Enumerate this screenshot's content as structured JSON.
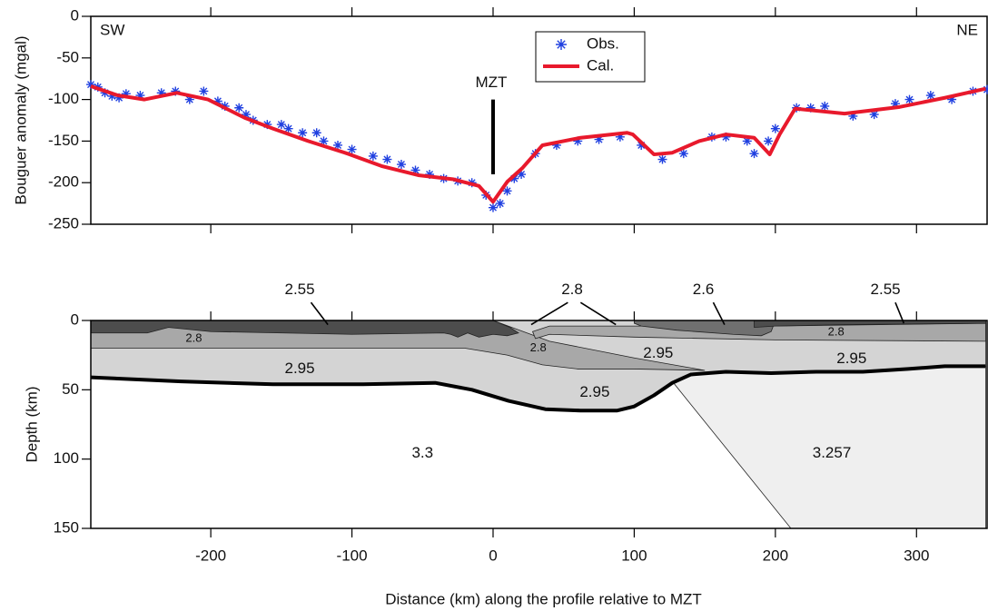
{
  "chart_data": [
    {
      "type": "line",
      "xlim": [
        -285,
        350
      ],
      "xticks": [
        -200,
        -100,
        0,
        100,
        200,
        300
      ],
      "ylim": [
        -250,
        0
      ],
      "yticks": [
        0,
        -50,
        -100,
        -150,
        -200,
        -250
      ],
      "y_label": "Bouguer anomaly (mgal)",
      "annotations": {
        "left": "SW",
        "right": "NE",
        "marker": "MZT"
      },
      "legend": "top",
      "series": [
        {
          "name": "Obs.",
          "color": "#2040e0",
          "marker": "star",
          "x": [
            -285,
            -280,
            -275,
            -270,
            -265,
            -260,
            -250,
            -235,
            -225,
            -215,
            -205,
            -195,
            -190,
            -180,
            -175,
            -170,
            -160,
            -150,
            -145,
            -135,
            -125,
            -120,
            -110,
            -100,
            -85,
            -75,
            -65,
            -55,
            -45,
            -35,
            -25,
            -15,
            -5,
            0,
            5,
            10,
            15,
            20,
            30,
            45,
            60,
            75,
            90,
            105,
            120,
            135,
            155,
            165,
            180,
            185,
            195,
            200,
            215,
            225,
            235,
            255,
            270,
            285,
            295,
            310,
            325,
            340,
            350
          ],
          "values": [
            -82,
            -85,
            -92,
            -96,
            -98,
            -93,
            -95,
            -92,
            -90,
            -100,
            -90,
            -102,
            -108,
            -110,
            -118,
            -125,
            -130,
            -130,
            -135,
            -140,
            -140,
            -150,
            -155,
            -160,
            -168,
            -172,
            -178,
            -185,
            -190,
            -195,
            -198,
            -200,
            -215,
            -230,
            -225,
            -210,
            -195,
            -190,
            -165,
            -155,
            -150,
            -148,
            -145,
            -155,
            -172,
            -165,
            -145,
            -145,
            -150,
            -165,
            -150,
            -135,
            -110,
            -110,
            -108,
            -120,
            -118,
            -105,
            -100,
            -95,
            -100,
            -90,
            -88
          ]
        },
        {
          "name": "Cal.",
          "color": "#e8192c",
          "x": [
            -285,
            -266,
            -247,
            -224,
            -202,
            -176,
            -156,
            -131,
            -105,
            -79,
            -53,
            -28,
            -10,
            0,
            10,
            21,
            35,
            62,
            95,
            99,
            114,
            127,
            146,
            165,
            185,
            196,
            203,
            214,
            249,
            288,
            320,
            349
          ],
          "values": [
            -84,
            -95,
            -100,
            -92,
            -100,
            -122,
            -135,
            -150,
            -164,
            -180,
            -191,
            -196,
            -204,
            -223,
            -199,
            -182,
            -155,
            -146,
            -140,
            -142,
            -166,
            -164,
            -150,
            -142,
            -146,
            -166,
            -142,
            -111,
            -117,
            -109,
            -98,
            -87
          ]
        }
      ]
    },
    {
      "type": "section",
      "xlim": [
        -285,
        350
      ],
      "xticks": [
        -200,
        -100,
        0,
        100,
        200,
        300
      ],
      "ylim": [
        0,
        150
      ],
      "yticks": [
        0,
        50,
        100,
        150
      ],
      "y_inverted": true,
      "x_label": "Distance (km) along the profile relative to MZT",
      "y_label": "Depth (km)",
      "bodies": [
        {
          "color": "#efefef",
          "x": [
            127,
            140,
            165,
            197,
            229,
            262,
            294,
            320,
            349,
            349,
            211
          ],
          "y": [
            44,
            39,
            37,
            38,
            37,
            37,
            35,
            33,
            33,
            150,
            150
          ]
        },
        {
          "color": "#d4d4d4",
          "x": [
            -285,
            349,
            349,
            320,
            294,
            262,
            229,
            197,
            165,
            140,
            127,
            114,
            100,
            88,
            62,
            37,
            11,
            -15,
            -41,
            -92,
            -156,
            -221,
            -285
          ],
          "y": [
            0,
            0,
            33,
            33,
            35,
            37,
            37,
            38,
            37,
            39,
            45,
            54,
            62,
            65,
            65,
            64,
            58,
            50,
            45,
            46,
            46,
            44,
            41
          ]
        },
        {
          "color": "#a8a8a8",
          "x": [
            -285,
            0,
            40,
            100,
            150,
            100,
            60,
            35,
            10,
            -20,
            -285
          ],
          "y": [
            0,
            0,
            15,
            27,
            36,
            35,
            35,
            32,
            25,
            20,
            20
          ]
        },
        {
          "color": "#a8a8a8",
          "x": [
            28,
            40,
            100,
            200,
            349,
            349,
            200,
            100,
            40,
            30
          ],
          "y": [
            8,
            4,
            4,
            4,
            2,
            15,
            14,
            12,
            10,
            13
          ]
        },
        {
          "color": "#4d4d4d",
          "x": [
            -285,
            0,
            12,
            18,
            10,
            0,
            -10,
            -18,
            -25,
            -30,
            -35,
            -100,
            -200,
            -230,
            -245,
            -285
          ],
          "y": [
            0,
            0,
            5,
            9,
            11,
            10,
            12,
            9,
            12,
            10,
            9,
            10,
            8,
            5,
            9,
            9
          ]
        },
        {
          "color": "#707070",
          "x": [
            100,
            200,
            197,
            190,
            170,
            130,
            105,
            100
          ],
          "y": [
            0,
            0,
            8,
            11,
            10,
            7,
            4,
            2
          ]
        },
        {
          "color": "#4d4d4d",
          "x": [
            185,
            349,
            349,
            250,
            200,
            185
          ],
          "y": [
            0,
            0,
            2,
            3,
            4,
            5
          ]
        }
      ],
      "boundary": {
        "x": [
          -285,
          -221,
          -156,
          -92,
          -41,
          -15,
          11,
          37,
          62,
          88,
          100,
          114,
          127,
          140,
          165,
          197,
          229,
          262,
          294,
          320,
          349
        ],
        "values": [
          41,
          44,
          46,
          46,
          45,
          50,
          58,
          64,
          65,
          65,
          62,
          54,
          45,
          39,
          37,
          38,
          37,
          37,
          35,
          33,
          33
        ]
      },
      "labels": [
        "2.55",
        "2.8",
        "2.6",
        "2.55",
        "2.8",
        "2.8",
        "2.8",
        "2.95",
        "2.95",
        "2.95",
        "2.95",
        "3.3",
        "3.257"
      ]
    }
  ]
}
